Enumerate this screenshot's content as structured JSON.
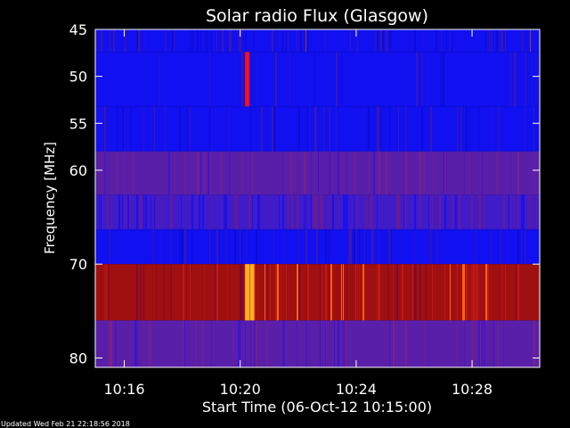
{
  "chart_data": {
    "type": "heatmap",
    "title": "Solar radio Flux (Glasgow)",
    "xlabel": "Start Time (06-Oct-12 10:15:00)",
    "ylabel": "Frequency [MHz]",
    "x_range_minutes": [
      10.25,
      10.5
    ],
    "x_ticks": [
      {
        "label": "10:16",
        "value": "10:16"
      },
      {
        "label": "10:20",
        "value": "10:20"
      },
      {
        "label": "10:24",
        "value": "10:24"
      },
      {
        "label": "10:28",
        "value": "10:28"
      }
    ],
    "y_range": [
      81,
      45
    ],
    "y_ticks": [
      {
        "label": "45",
        "value": 45
      },
      {
        "label": "50",
        "value": 50
      },
      {
        "label": "55",
        "value": 55
      },
      {
        "label": "60",
        "value": 60
      },
      {
        "label": "70",
        "value": 70
      },
      {
        "label": "80",
        "value": 80
      }
    ],
    "bands": [
      {
        "from": 45.0,
        "to": 47.4,
        "level": "blue",
        "activity": "high"
      },
      {
        "from": 47.4,
        "to": 53.2,
        "level": "blue",
        "activity": "low"
      },
      {
        "from": 53.2,
        "to": 58.0,
        "level": "blue",
        "activity": "medium"
      },
      {
        "from": 58.0,
        "to": 62.6,
        "level": "purple",
        "activity": "medium"
      },
      {
        "from": 62.6,
        "to": 66.3,
        "level": "purple-blue",
        "activity": "high"
      },
      {
        "from": 66.3,
        "to": 70.0,
        "level": "blue",
        "activity": "medium"
      },
      {
        "from": 70.0,
        "to": 76.0,
        "level": "red",
        "activity": "high"
      },
      {
        "from": 76.0,
        "to": 81.0,
        "level": "purple",
        "activity": "medium"
      }
    ],
    "bursts": [
      {
        "time": "10:20:10",
        "from": 47.4,
        "to": 53.2,
        "level": "red"
      },
      {
        "time": "10:20:10",
        "from": 70.0,
        "to": 76.0,
        "level": "yellow"
      },
      {
        "time": "10:20:20",
        "from": 70.0,
        "to": 76.0,
        "level": "yellow"
      }
    ],
    "colors": {
      "background": "#000000",
      "blue": "#1010f0",
      "purple": "#5a1fa8",
      "purple-blue": "#3f1cc8",
      "red": "#a01010",
      "yellow": "#ffb020",
      "axis": "#ffffff"
    }
  },
  "footer": {
    "updated": "Updated Wed Feb 21 22:18:56 2018"
  }
}
